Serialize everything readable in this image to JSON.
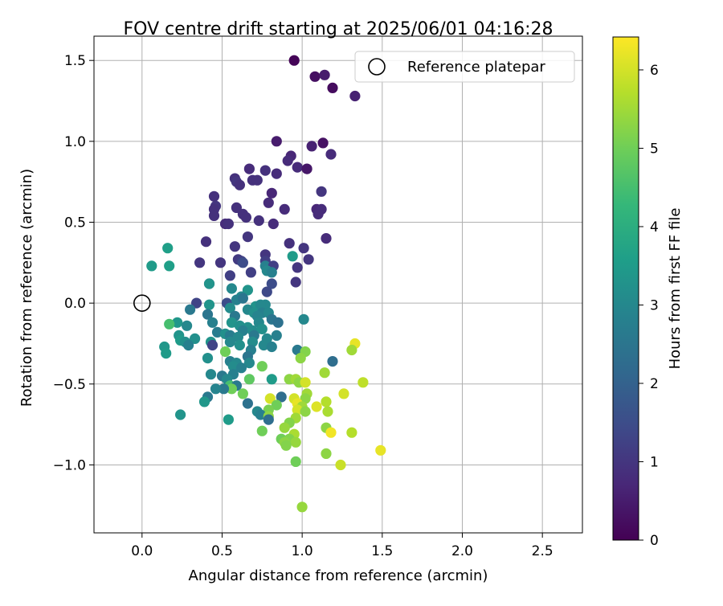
{
  "chart_data": {
    "type": "scatter",
    "title": "FOV centre drift starting at 2025/06/01 04:16:28",
    "xlabel": "Angular distance from reference (arcmin)",
    "ylabel": "Rotation from reference (arcmin)",
    "xlim": [
      -0.3,
      2.75
    ],
    "ylim": [
      -1.42,
      1.65
    ],
    "xticks": [
      0.0,
      0.5,
      1.0,
      1.5,
      2.0,
      2.5
    ],
    "xtick_labels": [
      "0.0",
      "0.5",
      "1.0",
      "1.5",
      "2.0",
      "2.5"
    ],
    "yticks": [
      -1.0,
      -0.5,
      0.0,
      0.5,
      1.0,
      1.5
    ],
    "ytick_labels": [
      "−1.0",
      "−0.5",
      "0.0",
      "0.5",
      "1.0",
      "1.5"
    ],
    "grid": true,
    "legend": {
      "placement": "top-right",
      "entries": [
        "Reference platepar"
      ]
    },
    "reference_point": {
      "x": 0.0,
      "y": 0.0,
      "marker": "open-circle",
      "color": "#000000"
    },
    "colorbar": {
      "label": "Hours from first FF file",
      "colormap": "viridis",
      "range": [
        0,
        6.42
      ],
      "ticks": [
        0,
        1,
        2,
        3,
        4,
        5,
        6
      ],
      "tick_labels": [
        "0",
        "1",
        "2",
        "3",
        "4",
        "5",
        "6"
      ]
    },
    "series": [
      {
        "marker": "filled-circle",
        "color_by": "hours",
        "points": [
          {
            "x": 0.95,
            "y": 1.5,
            "h": 0.05
          },
          {
            "x": 1.08,
            "y": 1.4,
            "h": 0.25
          },
          {
            "x": 1.14,
            "y": 1.41,
            "h": 0.5
          },
          {
            "x": 1.19,
            "y": 1.33,
            "h": 0.2
          },
          {
            "x": 1.33,
            "y": 1.28,
            "h": 0.6
          },
          {
            "x": 0.84,
            "y": 1.0,
            "h": 0.5
          },
          {
            "x": 1.06,
            "y": 0.97,
            "h": 0.6
          },
          {
            "x": 1.13,
            "y": 0.99,
            "h": 0.3
          },
          {
            "x": 0.93,
            "y": 0.91,
            "h": 0.7
          },
          {
            "x": 0.91,
            "y": 0.88,
            "h": 0.8
          },
          {
            "x": 1.18,
            "y": 0.92,
            "h": 0.8
          },
          {
            "x": 0.67,
            "y": 0.83,
            "h": 0.8
          },
          {
            "x": 0.97,
            "y": 0.84,
            "h": 0.8
          },
          {
            "x": 1.03,
            "y": 0.83,
            "h": 0.4
          },
          {
            "x": 0.77,
            "y": 0.82,
            "h": 0.9
          },
          {
            "x": 0.84,
            "y": 0.8,
            "h": 0.8
          },
          {
            "x": 0.58,
            "y": 0.77,
            "h": 0.9
          },
          {
            "x": 0.59,
            "y": 0.75,
            "h": 1.0
          },
          {
            "x": 0.69,
            "y": 0.76,
            "h": 0.9
          },
          {
            "x": 0.72,
            "y": 0.76,
            "h": 0.9
          },
          {
            "x": 0.61,
            "y": 0.73,
            "h": 0.9
          },
          {
            "x": 0.81,
            "y": 0.68,
            "h": 0.7
          },
          {
            "x": 1.12,
            "y": 0.69,
            "h": 1.0
          },
          {
            "x": 0.45,
            "y": 0.66,
            "h": 0.9
          },
          {
            "x": 0.79,
            "y": 0.62,
            "h": 0.8
          },
          {
            "x": 0.46,
            "y": 0.6,
            "h": 1.0
          },
          {
            "x": 0.45,
            "y": 0.58,
            "h": 0.9
          },
          {
            "x": 0.59,
            "y": 0.59,
            "h": 0.9
          },
          {
            "x": 0.89,
            "y": 0.58,
            "h": 0.8
          },
          {
            "x": 1.09,
            "y": 0.58,
            "h": 0.7
          },
          {
            "x": 1.12,
            "y": 0.58,
            "h": 0.8
          },
          {
            "x": 0.63,
            "y": 0.55,
            "h": 0.9
          },
          {
            "x": 0.65,
            "y": 0.53,
            "h": 0.9
          },
          {
            "x": 0.45,
            "y": 0.54,
            "h": 0.9
          },
          {
            "x": 1.1,
            "y": 0.55,
            "h": 0.8
          },
          {
            "x": 0.73,
            "y": 0.51,
            "h": 0.9
          },
          {
            "x": 0.52,
            "y": 0.49,
            "h": 0.8
          },
          {
            "x": 0.54,
            "y": 0.49,
            "h": 0.9
          },
          {
            "x": 0.82,
            "y": 0.49,
            "h": 0.8
          },
          {
            "x": 0.66,
            "y": 0.41,
            "h": 1.0
          },
          {
            "x": 1.15,
            "y": 0.4,
            "h": 0.8
          },
          {
            "x": 0.4,
            "y": 0.38,
            "h": 0.9
          },
          {
            "x": 0.92,
            "y": 0.37,
            "h": 0.9
          },
          {
            "x": 0.58,
            "y": 0.35,
            "h": 1.0
          },
          {
            "x": 1.01,
            "y": 0.34,
            "h": 1.0
          },
          {
            "x": 0.77,
            "y": 0.3,
            "h": 1.0
          },
          {
            "x": 0.94,
            "y": 0.29,
            "h": 3.5
          },
          {
            "x": 0.6,
            "y": 0.27,
            "h": 1.1
          },
          {
            "x": 0.62,
            "y": 0.26,
            "h": 1.2
          },
          {
            "x": 1.04,
            "y": 0.27,
            "h": 1.0
          },
          {
            "x": 0.36,
            "y": 0.25,
            "h": 1.0
          },
          {
            "x": 0.49,
            "y": 0.25,
            "h": 1.0
          },
          {
            "x": 0.77,
            "y": 0.26,
            "h": 1.2
          },
          {
            "x": 0.63,
            "y": 0.25,
            "h": 1.5
          },
          {
            "x": 0.16,
            "y": 0.34,
            "h": 3.6
          },
          {
            "x": 0.06,
            "y": 0.23,
            "h": 3.5
          },
          {
            "x": 0.17,
            "y": 0.23,
            "h": 3.6
          },
          {
            "x": 0.77,
            "y": 0.23,
            "h": 2.8
          },
          {
            "x": 0.82,
            "y": 0.23,
            "h": 1.2
          },
          {
            "x": 0.97,
            "y": 0.22,
            "h": 1.0
          },
          {
            "x": 0.78,
            "y": 0.2,
            "h": 3.0
          },
          {
            "x": 0.68,
            "y": 0.19,
            "h": 1.2
          },
          {
            "x": 0.55,
            "y": 0.17,
            "h": 1.2
          },
          {
            "x": 0.81,
            "y": 0.19,
            "h": 2.8
          },
          {
            "x": 0.96,
            "y": 0.13,
            "h": 1.0
          },
          {
            "x": 0.42,
            "y": 0.12,
            "h": 1.5
          },
          {
            "x": 0.42,
            "y": 0.12,
            "h": 3.3
          },
          {
            "x": 0.81,
            "y": 0.12,
            "h": 1.5
          },
          {
            "x": 0.66,
            "y": 0.08,
            "h": 3.3
          },
          {
            "x": 0.56,
            "y": 0.09,
            "h": 3.0
          },
          {
            "x": 0.78,
            "y": 0.07,
            "h": 1.4
          },
          {
            "x": 0.62,
            "y": 0.04,
            "h": 3.0
          },
          {
            "x": 0.34,
            "y": 0.0,
            "h": 1.3
          },
          {
            "x": 0.53,
            "y": 0.0,
            "h": 1.5
          },
          {
            "x": 0.42,
            "y": -0.01,
            "h": 3.3
          },
          {
            "x": 0.59,
            "y": 0.02,
            "h": 2.8
          },
          {
            "x": 0.63,
            "y": 0.03,
            "h": 2.5
          },
          {
            "x": 0.71,
            "y": -0.02,
            "h": 3.3
          },
          {
            "x": 0.77,
            "y": -0.01,
            "h": 3.0
          },
          {
            "x": 0.74,
            "y": -0.01,
            "h": 3.0
          },
          {
            "x": 0.3,
            "y": -0.04,
            "h": 2.6
          },
          {
            "x": 0.55,
            "y": -0.03,
            "h": 3.1
          },
          {
            "x": 0.66,
            "y": -0.04,
            "h": 3.0
          },
          {
            "x": 0.7,
            "y": -0.06,
            "h": 3.2
          },
          {
            "x": 0.75,
            "y": -0.06,
            "h": 2.8
          },
          {
            "x": 0.79,
            "y": -0.06,
            "h": 3.0
          },
          {
            "x": 0.41,
            "y": -0.07,
            "h": 2.5
          },
          {
            "x": 0.58,
            "y": -0.08,
            "h": 2.6
          },
          {
            "x": 0.72,
            "y": -0.08,
            "h": 2.9
          },
          {
            "x": 0.81,
            "y": -0.1,
            "h": 2.5
          },
          {
            "x": 1.01,
            "y": -0.1,
            "h": 3.0
          },
          {
            "x": 0.22,
            "y": -0.12,
            "h": 3.4
          },
          {
            "x": 0.17,
            "y": -0.13,
            "h": 4.5
          },
          {
            "x": 0.28,
            "y": -0.14,
            "h": 3.0
          },
          {
            "x": 0.44,
            "y": -0.12,
            "h": 2.8
          },
          {
            "x": 0.56,
            "y": -0.12,
            "h": 3.3
          },
          {
            "x": 0.61,
            "y": -0.14,
            "h": 3.2
          },
          {
            "x": 0.66,
            "y": -0.15,
            "h": 3.2
          },
          {
            "x": 0.73,
            "y": -0.12,
            "h": 3.0
          },
          {
            "x": 0.85,
            "y": -0.12,
            "h": 2.4
          },
          {
            "x": 0.63,
            "y": -0.17,
            "h": 2.8
          },
          {
            "x": 0.69,
            "y": -0.17,
            "h": 3.1
          },
          {
            "x": 0.75,
            "y": -0.16,
            "h": 3.2
          },
          {
            "x": 0.47,
            "y": -0.18,
            "h": 2.7
          },
          {
            "x": 0.52,
            "y": -0.19,
            "h": 3.2
          },
          {
            "x": 0.55,
            "y": -0.2,
            "h": 2.7
          },
          {
            "x": 0.23,
            "y": -0.2,
            "h": 3.3
          },
          {
            "x": 0.6,
            "y": -0.21,
            "h": 3.0
          },
          {
            "x": 0.7,
            "y": -0.2,
            "h": 2.6
          },
          {
            "x": 0.33,
            "y": -0.22,
            "h": 3.2
          },
          {
            "x": 0.84,
            "y": -0.2,
            "h": 2.8
          },
          {
            "x": 0.24,
            "y": -0.23,
            "h": 3.5
          },
          {
            "x": 0.78,
            "y": -0.22,
            "h": 3.0
          },
          {
            "x": 0.27,
            "y": -0.24,
            "h": 3.2
          },
          {
            "x": 0.43,
            "y": -0.24,
            "h": 3.3
          },
          {
            "x": 0.55,
            "y": -0.24,
            "h": 3.0
          },
          {
            "x": 0.69,
            "y": -0.24,
            "h": 3.1
          },
          {
            "x": 0.61,
            "y": -0.26,
            "h": 3.2
          },
          {
            "x": 0.76,
            "y": -0.26,
            "h": 3.0
          },
          {
            "x": 0.29,
            "y": -0.26,
            "h": 2.8
          },
          {
            "x": 0.44,
            "y": -0.26,
            "h": 1.3
          },
          {
            "x": 0.14,
            "y": -0.27,
            "h": 3.4
          },
          {
            "x": 0.81,
            "y": -0.27,
            "h": 2.8
          },
          {
            "x": 0.68,
            "y": -0.29,
            "h": 2.8
          },
          {
            "x": 0.97,
            "y": -0.29,
            "h": 2.6
          },
          {
            "x": 0.52,
            "y": -0.3,
            "h": 5.0
          },
          {
            "x": 1.02,
            "y": -0.3,
            "h": 5.2
          },
          {
            "x": 0.15,
            "y": -0.31,
            "h": 3.5
          },
          {
            "x": 0.66,
            "y": -0.33,
            "h": 2.5
          },
          {
            "x": 0.41,
            "y": -0.34,
            "h": 3.2
          },
          {
            "x": 0.99,
            "y": -0.34,
            "h": 5.3
          },
          {
            "x": 0.55,
            "y": -0.36,
            "h": 2.8
          },
          {
            "x": 0.67,
            "y": -0.37,
            "h": 3.0
          },
          {
            "x": 0.59,
            "y": -0.37,
            "h": 3.0
          },
          {
            "x": 1.19,
            "y": -0.36,
            "h": 2.3
          },
          {
            "x": 0.57,
            "y": -0.39,
            "h": 3.1
          },
          {
            "x": 0.62,
            "y": -0.4,
            "h": 2.8
          },
          {
            "x": 0.75,
            "y": -0.39,
            "h": 5.0
          },
          {
            "x": 1.33,
            "y": -0.25,
            "h": 6.2
          },
          {
            "x": 1.31,
            "y": -0.29,
            "h": 5.5
          },
          {
            "x": 1.14,
            "y": -0.43,
            "h": 5.5
          },
          {
            "x": 0.43,
            "y": -0.44,
            "h": 3.0
          },
          {
            "x": 0.57,
            "y": -0.44,
            "h": 2.8
          },
          {
            "x": 0.5,
            "y": -0.45,
            "h": 2.6
          },
          {
            "x": 0.53,
            "y": -0.47,
            "h": 3.0
          },
          {
            "x": 0.67,
            "y": -0.47,
            "h": 4.8
          },
          {
            "x": 0.81,
            "y": -0.47,
            "h": 3.5
          },
          {
            "x": 0.92,
            "y": -0.47,
            "h": 5.3
          },
          {
            "x": 0.96,
            "y": -0.47,
            "h": 5.5
          },
          {
            "x": 0.98,
            "y": -0.49,
            "h": 5.3
          },
          {
            "x": 1.02,
            "y": -0.49,
            "h": 6.0
          },
          {
            "x": 1.38,
            "y": -0.49,
            "h": 5.8
          },
          {
            "x": 0.55,
            "y": -0.51,
            "h": 4.5
          },
          {
            "x": 0.59,
            "y": -0.51,
            "h": 2.6
          },
          {
            "x": 0.56,
            "y": -0.53,
            "h": 5.0
          },
          {
            "x": 0.51,
            "y": -0.53,
            "h": 2.6
          },
          {
            "x": 0.46,
            "y": -0.53,
            "h": 2.9
          },
          {
            "x": 1.26,
            "y": -0.56,
            "h": 6.0
          },
          {
            "x": 0.63,
            "y": -0.56,
            "h": 5.0
          },
          {
            "x": 1.03,
            "y": -0.56,
            "h": 5.5
          },
          {
            "x": 1.02,
            "y": -0.59,
            "h": 5.3
          },
          {
            "x": 0.41,
            "y": -0.58,
            "h": 2.6
          },
          {
            "x": 0.87,
            "y": -0.58,
            "h": 2.3
          },
          {
            "x": 0.8,
            "y": -0.59,
            "h": 6.0
          },
          {
            "x": 0.95,
            "y": -0.59,
            "h": 6.0
          },
          {
            "x": 0.97,
            "y": -0.62,
            "h": 6.2
          },
          {
            "x": 0.39,
            "y": -0.61,
            "h": 3.4
          },
          {
            "x": 1.15,
            "y": -0.61,
            "h": 5.7
          },
          {
            "x": 0.66,
            "y": -0.62,
            "h": 2.4
          },
          {
            "x": 0.84,
            "y": -0.63,
            "h": 5.0
          },
          {
            "x": 1.0,
            "y": -0.64,
            "h": 5.5
          },
          {
            "x": 1.09,
            "y": -0.64,
            "h": 6.1
          },
          {
            "x": 0.97,
            "y": -0.66,
            "h": 6.0
          },
          {
            "x": 1.02,
            "y": -0.67,
            "h": 5.3
          },
          {
            "x": 1.16,
            "y": -0.67,
            "h": 5.6
          },
          {
            "x": 0.79,
            "y": -0.66,
            "h": 5.1
          },
          {
            "x": 0.72,
            "y": -0.67,
            "h": 3.0
          },
          {
            "x": 0.74,
            "y": -0.69,
            "h": 2.8
          },
          {
            "x": 0.24,
            "y": -0.69,
            "h": 3.3
          },
          {
            "x": 0.79,
            "y": -0.7,
            "h": 5.3
          },
          {
            "x": 0.54,
            "y": -0.72,
            "h": 3.5
          },
          {
            "x": 0.79,
            "y": -0.72,
            "h": 2.3
          },
          {
            "x": 0.96,
            "y": -0.71,
            "h": 5.5
          },
          {
            "x": 0.92,
            "y": -0.74,
            "h": 5.2
          },
          {
            "x": 1.15,
            "y": -0.77,
            "h": 5.3
          },
          {
            "x": 0.89,
            "y": -0.77,
            "h": 5.4
          },
          {
            "x": 0.75,
            "y": -0.79,
            "h": 5.0
          },
          {
            "x": 1.31,
            "y": -0.8,
            "h": 5.7
          },
          {
            "x": 1.18,
            "y": -0.8,
            "h": 6.3
          },
          {
            "x": 0.95,
            "y": -0.81,
            "h": 5.6
          },
          {
            "x": 0.87,
            "y": -0.84,
            "h": 5.0
          },
          {
            "x": 0.92,
            "y": -0.84,
            "h": 5.2
          },
          {
            "x": 0.89,
            "y": -0.86,
            "h": 5.3
          },
          {
            "x": 0.96,
            "y": -0.86,
            "h": 5.4
          },
          {
            "x": 0.9,
            "y": -0.88,
            "h": 5.2
          },
          {
            "x": 1.49,
            "y": -0.91,
            "h": 6.2
          },
          {
            "x": 1.15,
            "y": -0.93,
            "h": 5.3
          },
          {
            "x": 0.96,
            "y": -0.98,
            "h": 5.0
          },
          {
            "x": 1.24,
            "y": -1.0,
            "h": 5.9
          },
          {
            "x": 1.0,
            "y": -1.26,
            "h": 5.4
          }
        ]
      }
    ]
  }
}
